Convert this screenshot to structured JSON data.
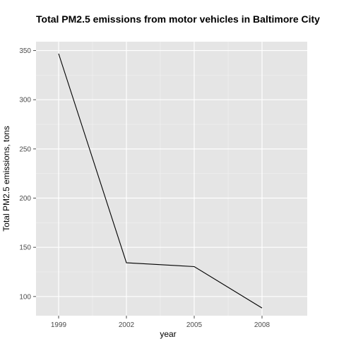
{
  "chart_data": {
    "type": "line",
    "title": "Total PM2.5 emissions from motor vehicles in Baltimore City",
    "xlabel": "year",
    "ylabel": "Total PM2.5 emissions, tons",
    "x": [
      1999,
      2002,
      2005,
      2008
    ],
    "x_tick_labels": [
      "1999",
      "2002",
      "2005",
      "2008"
    ],
    "xlim": [
      1998,
      2010
    ],
    "y_ticks": [
      100,
      150,
      200,
      250,
      300,
      350
    ],
    "y_tick_labels": [
      "100",
      "150",
      "200",
      "250",
      "300",
      "350"
    ],
    "ylim": [
      80.5,
      359
    ],
    "series": [
      {
        "values": [
          346.8,
          134.3,
          130.4,
          88.3
        ]
      }
    ],
    "grid": true,
    "legend": "none",
    "colors": {
      "panel_background": "#e5e5e5",
      "grid_major": "#ffffff",
      "grid_minor": "#f2f2f2",
      "line": "#000000"
    }
  }
}
